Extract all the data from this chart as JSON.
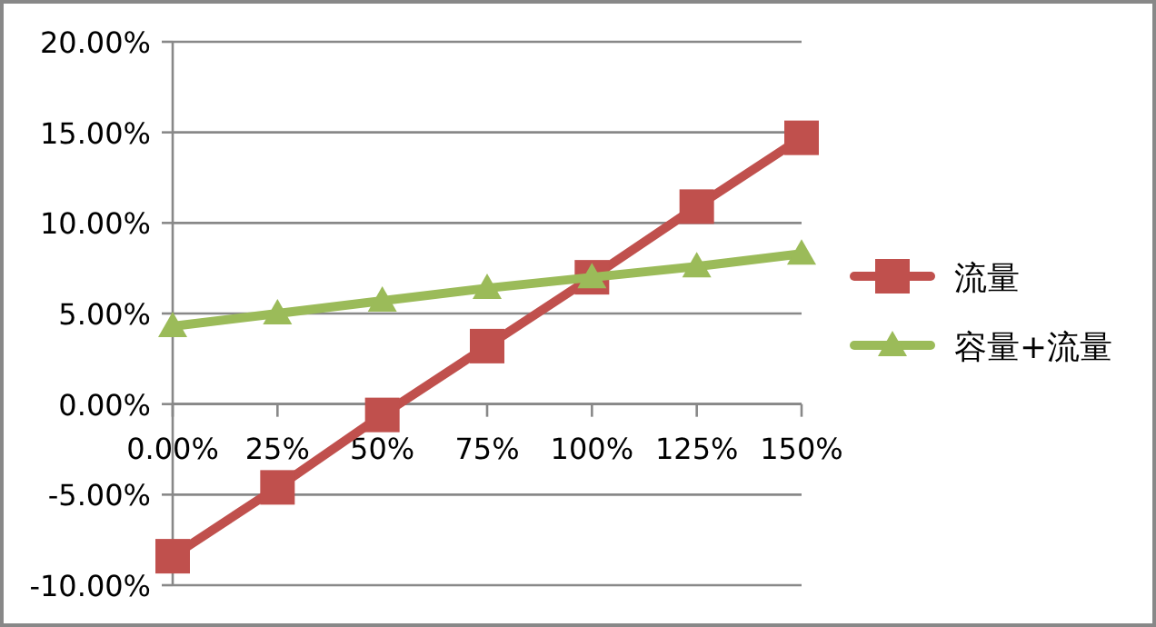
{
  "chart_data": {
    "type": "line",
    "categories": [
      "0.00%",
      "25%",
      "50%",
      "75%",
      "100%",
      "125%",
      "150%"
    ],
    "series": [
      {
        "name": "流量",
        "color": "#c0504d",
        "marker": "square",
        "values": [
          -8.4,
          -4.6,
          -0.6,
          3.2,
          7.0,
          10.9,
          14.7
        ]
      },
      {
        "name": "容量+流量",
        "color": "#9bbb59",
        "marker": "triangle",
        "values": [
          4.3,
          5.0,
          5.7,
          6.4,
          7.0,
          7.6,
          8.3
        ]
      }
    ],
    "ylim": [
      -10,
      20
    ],
    "yticks": [
      {
        "value": -10,
        "label": "-10.00%"
      },
      {
        "value": -5,
        "label": "-5.00%"
      },
      {
        "value": 0,
        "label": "0.00%"
      },
      {
        "value": 5,
        "label": "5.00%"
      },
      {
        "value": 10,
        "label": "10.00%"
      },
      {
        "value": 15,
        "label": "15.00%"
      },
      {
        "value": 20,
        "label": "20.00%"
      }
    ],
    "grid": "y",
    "legend": "right"
  }
}
